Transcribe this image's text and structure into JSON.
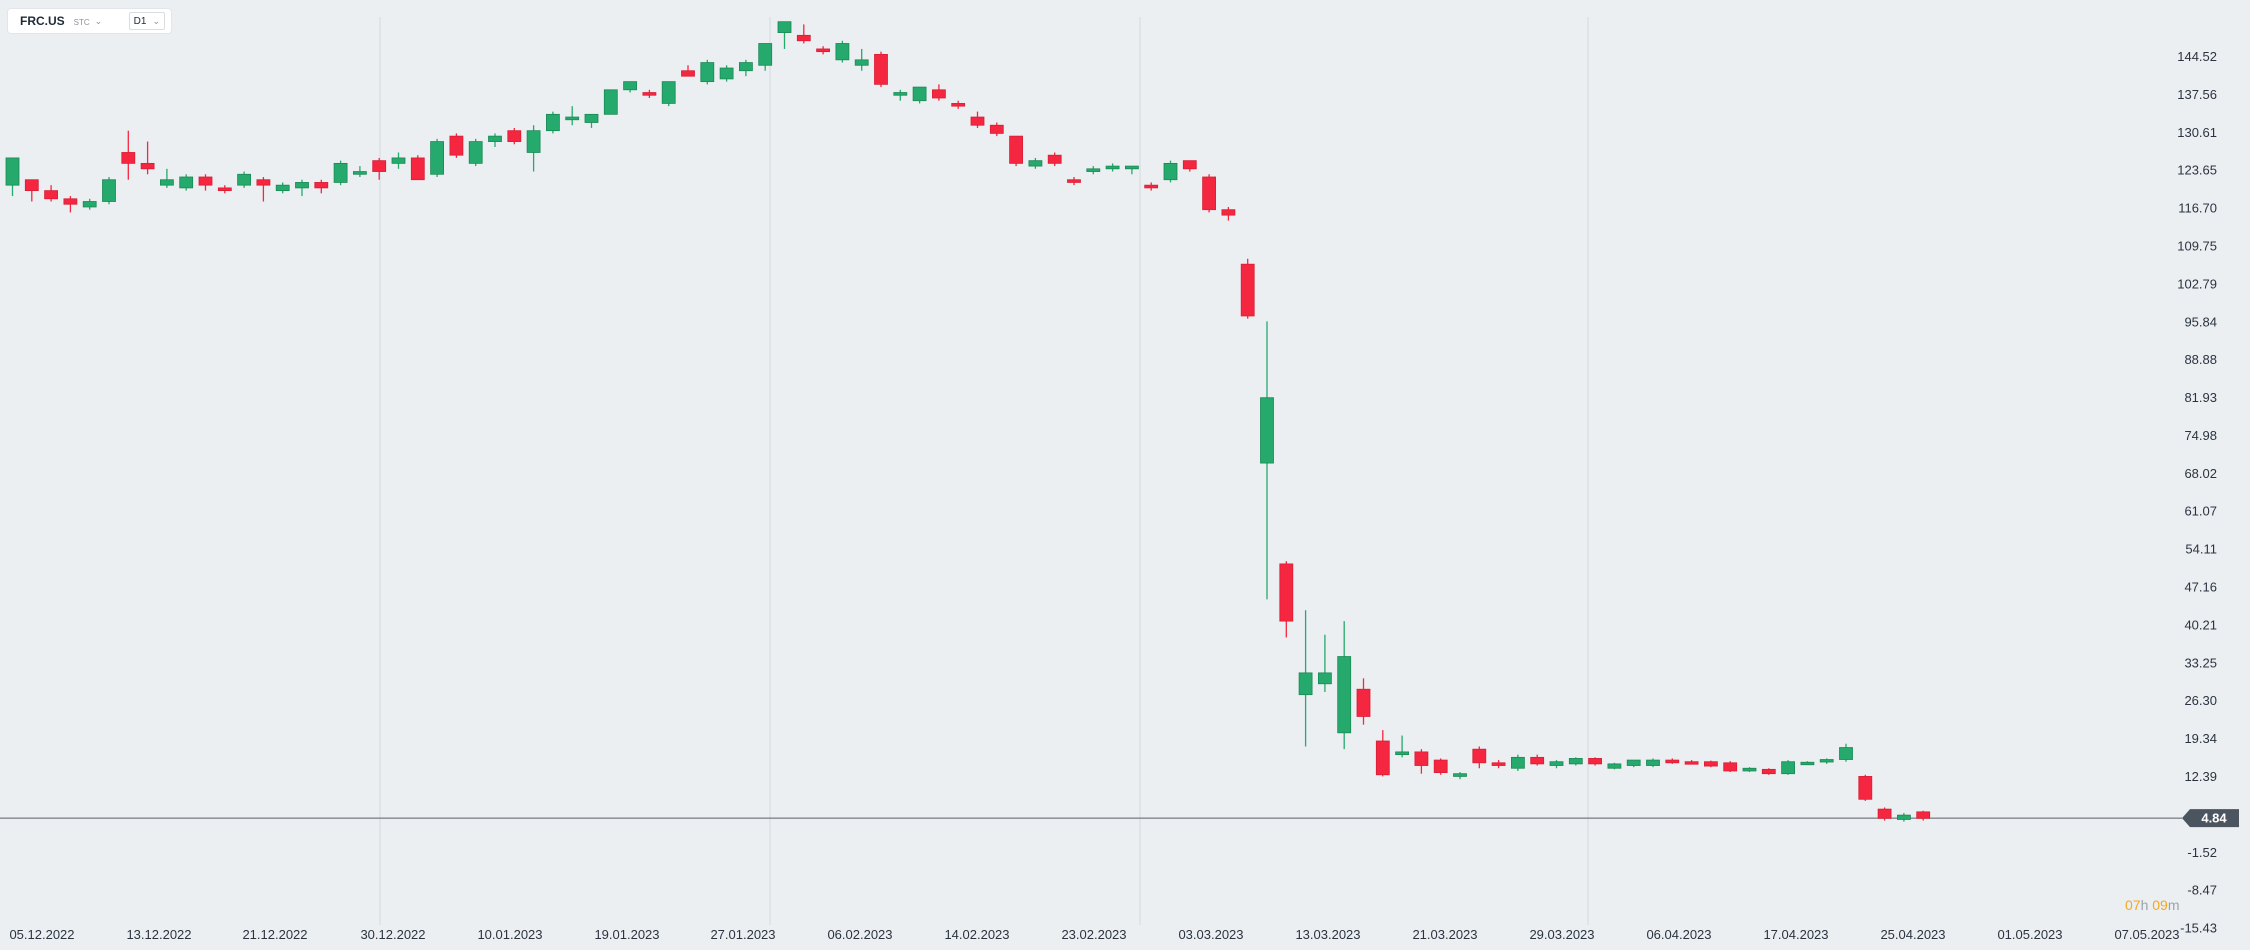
{
  "header": {
    "symbol": "FRC.US",
    "market": "STC",
    "timeframe": "D1"
  },
  "countdown": {
    "hours": "07",
    "hours_unit": "h",
    "minutes": "09",
    "minutes_unit": "m"
  },
  "current_price_label": "4.84",
  "colors": {
    "up": "#26a96c",
    "down": "#f5263f",
    "grid": "#d4d9de",
    "price_line": "#56606a",
    "price_tag": "#4a5560",
    "text": "#1f2a36"
  },
  "chart_data": {
    "type": "candlestick",
    "current_price": 4.84,
    "y_ticks": [
      "144.52",
      "137.56",
      "130.61",
      "123.65",
      "116.70",
      "109.75",
      "102.79",
      "95.84",
      "88.88",
      "81.93",
      "74.98",
      "68.02",
      "61.07",
      "54.11",
      "47.16",
      "40.21",
      "33.25",
      "26.30",
      "19.34",
      "12.39",
      "-1.52",
      "-8.47",
      "-15.43"
    ],
    "x_labels": [
      "05.12.2022",
      "13.12.2022",
      "21.12.2022",
      "30.12.2022",
      "10.01.2023",
      "19.01.2023",
      "27.01.2023",
      "06.02.2023",
      "14.02.2023",
      "23.02.2023",
      "03.03.2023",
      "13.03.2023",
      "21.03.2023",
      "29.03.2023",
      "06.04.2023",
      "17.04.2023",
      "25.04.2023",
      "01.05.2023",
      "07.05.2023"
    ],
    "candles": [
      {
        "o": 121,
        "h": 126,
        "l": 119,
        "c": 126
      },
      {
        "o": 122,
        "h": 122,
        "l": 118,
        "c": 120
      },
      {
        "o": 120,
        "h": 121,
        "l": 118,
        "c": 118.5
      },
      {
        "o": 118.5,
        "h": 119,
        "l": 116,
        "c": 117.5
      },
      {
        "o": 117,
        "h": 118.5,
        "l": 116.5,
        "c": 118
      },
      {
        "o": 118,
        "h": 122.5,
        "l": 117.5,
        "c": 122
      },
      {
        "o": 127,
        "h": 131,
        "l": 122,
        "c": 125
      },
      {
        "o": 125,
        "h": 129,
        "l": 123,
        "c": 124
      },
      {
        "o": 121,
        "h": 124,
        "l": 120.5,
        "c": 122
      },
      {
        "o": 120.5,
        "h": 123,
        "l": 120,
        "c": 122.5
      },
      {
        "o": 122.5,
        "h": 123,
        "l": 120,
        "c": 121
      },
      {
        "o": 120.5,
        "h": 121,
        "l": 119.5,
        "c": 120
      },
      {
        "o": 121,
        "h": 123.5,
        "l": 120.5,
        "c": 123
      },
      {
        "o": 122,
        "h": 122.5,
        "l": 118,
        "c": 121
      },
      {
        "o": 120,
        "h": 121.5,
        "l": 119.5,
        "c": 121
      },
      {
        "o": 120.5,
        "h": 122,
        "l": 119,
        "c": 121.5
      },
      {
        "o": 121.5,
        "h": 122,
        "l": 119.5,
        "c": 120.5
      },
      {
        "o": 121.5,
        "h": 125.5,
        "l": 121,
        "c": 125
      },
      {
        "o": 123,
        "h": 124.5,
        "l": 122.5,
        "c": 123.5
      },
      {
        "o": 125.5,
        "h": 126,
        "l": 122,
        "c": 123.5
      },
      {
        "o": 125,
        "h": 127,
        "l": 124,
        "c": 126
      },
      {
        "o": 126,
        "h": 126.5,
        "l": 122,
        "c": 122
      },
      {
        "o": 123,
        "h": 129.5,
        "l": 122.5,
        "c": 129
      },
      {
        "o": 130,
        "h": 130.5,
        "l": 126,
        "c": 126.5
      },
      {
        "o": 125,
        "h": 129.5,
        "l": 124.5,
        "c": 129
      },
      {
        "o": 129,
        "h": 130.5,
        "l": 128,
        "c": 130
      },
      {
        "o": 131,
        "h": 131.5,
        "l": 128.5,
        "c": 129
      },
      {
        "o": 127,
        "h": 132,
        "l": 123.5,
        "c": 131
      },
      {
        "o": 131,
        "h": 134.5,
        "l": 130.5,
        "c": 134
      },
      {
        "o": 133,
        "h": 135.5,
        "l": 132,
        "c": 133.5
      },
      {
        "o": 132.5,
        "h": 134,
        "l": 131.5,
        "c": 134
      },
      {
        "o": 134,
        "h": 138.5,
        "l": 134,
        "c": 138.5
      },
      {
        "o": 138.5,
        "h": 140,
        "l": 138,
        "c": 140
      },
      {
        "o": 138,
        "h": 138.5,
        "l": 137,
        "c": 137.5
      },
      {
        "o": 136,
        "h": 140,
        "l": 135.5,
        "c": 140
      },
      {
        "o": 142,
        "h": 143,
        "l": 141,
        "c": 141
      },
      {
        "o": 140,
        "h": 144,
        "l": 139.5,
        "c": 143.5
      },
      {
        "o": 140.5,
        "h": 143,
        "l": 140,
        "c": 142.5
      },
      {
        "o": 142,
        "h": 144,
        "l": 141,
        "c": 143.5
      },
      {
        "o": 143,
        "h": 147,
        "l": 142,
        "c": 147
      },
      {
        "o": 149,
        "h": 151,
        "l": 146,
        "c": 151
      },
      {
        "o": 148.5,
        "h": 150.5,
        "l": 147,
        "c": 147.5
      },
      {
        "o": 146,
        "h": 146.5,
        "l": 145,
        "c": 145.5
      },
      {
        "o": 144,
        "h": 147.5,
        "l": 143.5,
        "c": 147
      },
      {
        "o": 143,
        "h": 146,
        "l": 142,
        "c": 144
      },
      {
        "o": 145,
        "h": 145.5,
        "l": 139,
        "c": 139.5
      },
      {
        "o": 137.5,
        "h": 138.5,
        "l": 136.5,
        "c": 138
      },
      {
        "o": 136.5,
        "h": 139,
        "l": 136,
        "c": 139
      },
      {
        "o": 138.5,
        "h": 139.5,
        "l": 136.5,
        "c": 137
      },
      {
        "o": 136,
        "h": 136.5,
        "l": 135,
        "c": 135.5
      },
      {
        "o": 133.5,
        "h": 134.5,
        "l": 131.5,
        "c": 132
      },
      {
        "o": 132,
        "h": 132.5,
        "l": 130,
        "c": 130.5
      },
      {
        "o": 130,
        "h": 130,
        "l": 124.5,
        "c": 125
      },
      {
        "o": 124.5,
        "h": 126,
        "l": 124,
        "c": 125.5
      },
      {
        "o": 126.5,
        "h": 127,
        "l": 124.5,
        "c": 125
      },
      {
        "o": 122,
        "h": 122.5,
        "l": 121,
        "c": 121.5
      },
      {
        "o": 123.5,
        "h": 124.5,
        "l": 123,
        "c": 124
      },
      {
        "o": 124,
        "h": 125,
        "l": 123.5,
        "c": 124.5
      },
      {
        "o": 124,
        "h": 124.5,
        "l": 123,
        "c": 124.5
      },
      {
        "o": 121,
        "h": 121.5,
        "l": 120,
        "c": 120.5
      },
      {
        "o": 122,
        "h": 125.5,
        "l": 121.5,
        "c": 125
      },
      {
        "o": 125.5,
        "h": 125.5,
        "l": 123.5,
        "c": 124
      },
      {
        "o": 122.5,
        "h": 123,
        "l": 116,
        "c": 116.5
      },
      {
        "o": 116.5,
        "h": 117,
        "l": 114.5,
        "c": 115.5
      },
      {
        "o": 106.5,
        "h": 107.5,
        "l": 96.5,
        "c": 97
      },
      {
        "o": 70,
        "h": 96,
        "l": 45,
        "c": 82
      },
      {
        "o": 51.5,
        "h": 52,
        "l": 38,
        "c": 41
      },
      {
        "o": 27.5,
        "h": 43,
        "l": 18,
        "c": 31.5
      },
      {
        "o": 29.5,
        "h": 38.5,
        "l": 28,
        "c": 31.5
      },
      {
        "o": 20.5,
        "h": 41,
        "l": 17.5,
        "c": 34.5
      },
      {
        "o": 28.5,
        "h": 30.5,
        "l": 22,
        "c": 23.5
      },
      {
        "o": 19,
        "h": 21,
        "l": 12.5,
        "c": 12.8
      },
      {
        "o": 16.5,
        "h": 20,
        "l": 16,
        "c": 17
      },
      {
        "o": 17,
        "h": 17.5,
        "l": 13,
        "c": 14.5
      },
      {
        "o": 15.5,
        "h": 15.8,
        "l": 12.8,
        "c": 13.2
      },
      {
        "o": 12.5,
        "h": 13.3,
        "l": 12,
        "c": 13
      },
      {
        "o": 17.5,
        "h": 18,
        "l": 14,
        "c": 15
      },
      {
        "o": 15,
        "h": 15.5,
        "l": 14,
        "c": 14.5
      },
      {
        "o": 14,
        "h": 16.5,
        "l": 13.5,
        "c": 16
      },
      {
        "o": 16,
        "h": 16.5,
        "l": 14.5,
        "c": 14.8
      },
      {
        "o": 14.5,
        "h": 15.5,
        "l": 14,
        "c": 15.2
      },
      {
        "o": 14.8,
        "h": 16,
        "l": 14.5,
        "c": 15.8
      },
      {
        "o": 15.8,
        "h": 16,
        "l": 14.5,
        "c": 14.8
      },
      {
        "o": 14,
        "h": 15,
        "l": 13.8,
        "c": 14.8
      },
      {
        "o": 14.5,
        "h": 15.5,
        "l": 14.2,
        "c": 15.5
      },
      {
        "o": 14.5,
        "h": 15.8,
        "l": 14.2,
        "c": 15.5
      },
      {
        "o": 15.5,
        "h": 15.8,
        "l": 14.8,
        "c": 15
      },
      {
        "o": 15.2,
        "h": 15.5,
        "l": 14.8,
        "c": 14.9
      },
      {
        "o": 15.2,
        "h": 15.4,
        "l": 14.2,
        "c": 14.4
      },
      {
        "o": 15,
        "h": 15.3,
        "l": 13.3,
        "c": 13.5
      },
      {
        "o": 13.5,
        "h": 14.2,
        "l": 13.3,
        "c": 14
      },
      {
        "o": 13.8,
        "h": 14,
        "l": 12.8,
        "c": 13
      },
      {
        "o": 13,
        "h": 15.5,
        "l": 12.8,
        "c": 15.2
      },
      {
        "o": 15,
        "h": 15.3,
        "l": 14.6,
        "c": 15.1
      },
      {
        "o": 15.2,
        "h": 15.8,
        "l": 14.8,
        "c": 15.6
      },
      {
        "o": 15.6,
        "h": 18.5,
        "l": 15.2,
        "c": 17.8
      },
      {
        "o": 12.5,
        "h": 12.8,
        "l": 8,
        "c": 8.3
      },
      {
        "o": 6.5,
        "h": 6.8,
        "l": 4.4,
        "c": 4.8
      },
      {
        "o": 4.6,
        "h": 5.8,
        "l": 4.2,
        "c": 5.4
      },
      {
        "o": 6,
        "h": 6.2,
        "l": 4.4,
        "c": 4.8
      }
    ]
  }
}
